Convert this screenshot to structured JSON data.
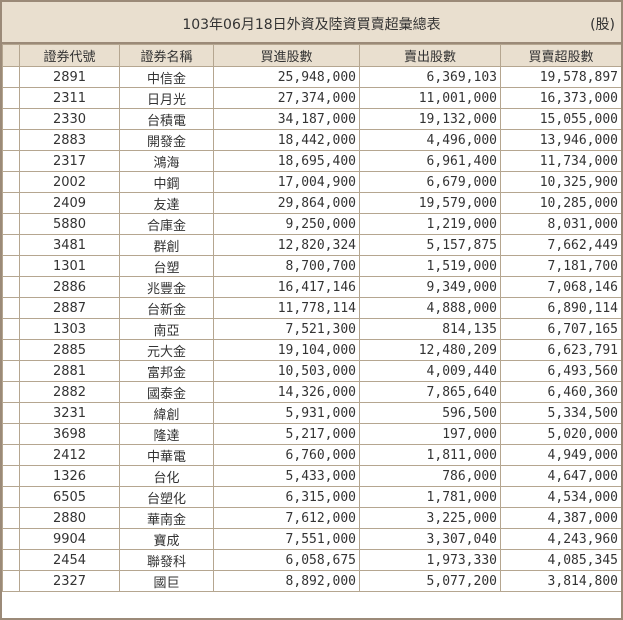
{
  "title": "103年06月18日外資及陸資買賣超彙總表",
  "unit": "(股)",
  "columns": [
    "證券代號",
    "證券名稱",
    "買進股數",
    "賣出股數",
    "買賣超股數"
  ],
  "rows": [
    {
      "code": "2891",
      "name": "中信金",
      "buy": "25,948,000",
      "sell": "6,369,103",
      "net": "19,578,897"
    },
    {
      "code": "2311",
      "name": "日月光",
      "buy": "27,374,000",
      "sell": "11,001,000",
      "net": "16,373,000"
    },
    {
      "code": "2330",
      "name": "台積電",
      "buy": "34,187,000",
      "sell": "19,132,000",
      "net": "15,055,000"
    },
    {
      "code": "2883",
      "name": "開發金",
      "buy": "18,442,000",
      "sell": "4,496,000",
      "net": "13,946,000"
    },
    {
      "code": "2317",
      "name": "鴻海",
      "buy": "18,695,400",
      "sell": "6,961,400",
      "net": "11,734,000"
    },
    {
      "code": "2002",
      "name": "中鋼",
      "buy": "17,004,900",
      "sell": "6,679,000",
      "net": "10,325,900"
    },
    {
      "code": "2409",
      "name": "友達",
      "buy": "29,864,000",
      "sell": "19,579,000",
      "net": "10,285,000"
    },
    {
      "code": "5880",
      "name": "合庫金",
      "buy": "9,250,000",
      "sell": "1,219,000",
      "net": "8,031,000"
    },
    {
      "code": "3481",
      "name": "群創",
      "buy": "12,820,324",
      "sell": "5,157,875",
      "net": "7,662,449"
    },
    {
      "code": "1301",
      "name": "台塑",
      "buy": "8,700,700",
      "sell": "1,519,000",
      "net": "7,181,700"
    },
    {
      "code": "2886",
      "name": "兆豐金",
      "buy": "16,417,146",
      "sell": "9,349,000",
      "net": "7,068,146"
    },
    {
      "code": "2887",
      "name": "台新金",
      "buy": "11,778,114",
      "sell": "4,888,000",
      "net": "6,890,114"
    },
    {
      "code": "1303",
      "name": "南亞",
      "buy": "7,521,300",
      "sell": "814,135",
      "net": "6,707,165"
    },
    {
      "code": "2885",
      "name": "元大金",
      "buy": "19,104,000",
      "sell": "12,480,209",
      "net": "6,623,791"
    },
    {
      "code": "2881",
      "name": "富邦金",
      "buy": "10,503,000",
      "sell": "4,009,440",
      "net": "6,493,560"
    },
    {
      "code": "2882",
      "name": "國泰金",
      "buy": "14,326,000",
      "sell": "7,865,640",
      "net": "6,460,360"
    },
    {
      "code": "3231",
      "name": "緯創",
      "buy": "5,931,000",
      "sell": "596,500",
      "net": "5,334,500"
    },
    {
      "code": "3698",
      "name": "隆達",
      "buy": "5,217,000",
      "sell": "197,000",
      "net": "5,020,000"
    },
    {
      "code": "2412",
      "name": "中華電",
      "buy": "6,760,000",
      "sell": "1,811,000",
      "net": "4,949,000"
    },
    {
      "code": "1326",
      "name": "台化",
      "buy": "5,433,000",
      "sell": "786,000",
      "net": "4,647,000"
    },
    {
      "code": "6505",
      "name": "台塑化",
      "buy": "6,315,000",
      "sell": "1,781,000",
      "net": "4,534,000"
    },
    {
      "code": "2880",
      "name": "華南金",
      "buy": "7,612,000",
      "sell": "3,225,000",
      "net": "4,387,000"
    },
    {
      "code": "9904",
      "name": "寶成",
      "buy": "7,551,000",
      "sell": "3,307,040",
      "net": "4,243,960"
    },
    {
      "code": "2454",
      "name": "聯發科",
      "buy": "6,058,675",
      "sell": "1,973,330",
      "net": "4,085,345"
    },
    {
      "code": "2327",
      "name": "國巨",
      "buy": "8,892,000",
      "sell": "5,077,200",
      "net": "3,814,800"
    }
  ]
}
